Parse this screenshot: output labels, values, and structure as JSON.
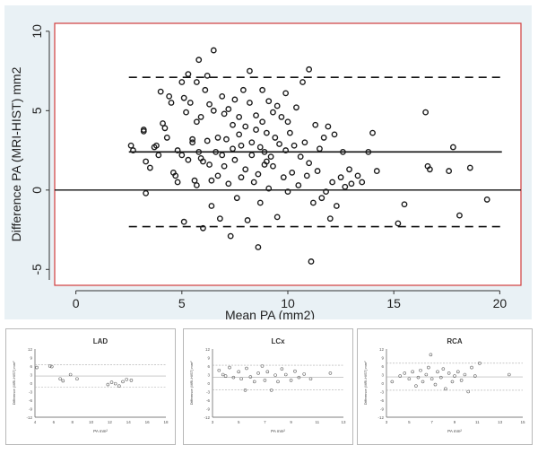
{
  "chart_data": [
    {
      "type": "scatter",
      "xlabel": "Mean PA (mm2)",
      "ylabel": "Difference PA (MRI-HIST) mm2",
      "xlim": [
        -1,
        21
      ],
      "ylim": [
        -6,
        10.5
      ],
      "xticks": [
        0,
        5,
        10,
        15,
        20
      ],
      "yticks": [
        -5,
        0,
        5,
        10
      ],
      "mean_line": 2.4,
      "upper_limit": 7.1,
      "lower_limit": -2.3,
      "zero_line": 0,
      "grid": false,
      "colors": {
        "frame": "#e9f1f5",
        "plot_border": "#d03c3c",
        "marker": "#1a1a1a"
      },
      "points": [
        [
          2.6,
          2.8
        ],
        [
          2.7,
          2.5
        ],
        [
          3.2,
          3.8
        ],
        [
          3.2,
          3.7
        ],
        [
          3.3,
          1.8
        ],
        [
          3.3,
          -0.2
        ],
        [
          3.5,
          1.4
        ],
        [
          3.7,
          2.7
        ],
        [
          3.8,
          2.8
        ],
        [
          3.9,
          2.2
        ],
        [
          4.0,
          6.2
        ],
        [
          4.1,
          4.2
        ],
        [
          4.2,
          3.9
        ],
        [
          4.3,
          3.3
        ],
        [
          4.4,
          5.9
        ],
        [
          4.5,
          5.5
        ],
        [
          4.6,
          1.1
        ],
        [
          4.7,
          0.9
        ],
        [
          4.8,
          2.5
        ],
        [
          4.8,
          0.5
        ],
        [
          5.0,
          6.8
        ],
        [
          5.0,
          2.2
        ],
        [
          5.1,
          5.8
        ],
        [
          5.1,
          -2.0
        ],
        [
          5.2,
          4.9
        ],
        [
          5.3,
          7.3
        ],
        [
          5.3,
          1.9
        ],
        [
          5.4,
          5.5
        ],
        [
          5.5,
          3.2
        ],
        [
          5.5,
          3.0
        ],
        [
          5.6,
          0.6
        ],
        [
          5.7,
          6.8
        ],
        [
          5.7,
          4.3
        ],
        [
          5.7,
          0.3
        ],
        [
          5.8,
          8.2
        ],
        [
          5.8,
          2.4
        ],
        [
          5.9,
          4.6
        ],
        [
          5.9,
          2.0
        ],
        [
          6.0,
          1.8
        ],
        [
          6.0,
          -2.4
        ],
        [
          6.1,
          6.3
        ],
        [
          6.2,
          7.2
        ],
        [
          6.2,
          3.1
        ],
        [
          6.3,
          5.4
        ],
        [
          6.3,
          1.6
        ],
        [
          6.4,
          0.6
        ],
        [
          6.4,
          -1.0
        ],
        [
          6.5,
          8.8
        ],
        [
          6.5,
          5.0
        ],
        [
          6.6,
          2.4
        ],
        [
          6.7,
          3.3
        ],
        [
          6.7,
          0.9
        ],
        [
          6.8,
          -1.8
        ],
        [
          6.9,
          5.9
        ],
        [
          6.9,
          2.2
        ],
        [
          7.0,
          4.8
        ],
        [
          7.0,
          1.5
        ],
        [
          7.1,
          3.2
        ],
        [
          7.2,
          5.1
        ],
        [
          7.2,
          0.4
        ],
        [
          7.3,
          -2.9
        ],
        [
          7.4,
          4.1
        ],
        [
          7.4,
          2.6
        ],
        [
          7.5,
          5.7
        ],
        [
          7.5,
          1.9
        ],
        [
          7.6,
          -0.5
        ],
        [
          7.7,
          4.6
        ],
        [
          7.7,
          3.5
        ],
        [
          7.8,
          2.8
        ],
        [
          7.8,
          0.8
        ],
        [
          7.9,
          6.3
        ],
        [
          8.0,
          4.0
        ],
        [
          8.0,
          1.3
        ],
        [
          8.1,
          -1.9
        ],
        [
          8.2,
          7.5
        ],
        [
          8.2,
          5.5
        ],
        [
          8.3,
          3.0
        ],
        [
          8.3,
          2.2
        ],
        [
          8.4,
          0.5
        ],
        [
          8.5,
          4.7
        ],
        [
          8.5,
          3.8
        ],
        [
          8.6,
          1.0
        ],
        [
          8.7,
          2.7
        ],
        [
          8.7,
          -0.8
        ],
        [
          8.8,
          6.3
        ],
        [
          8.8,
          4.3
        ],
        [
          8.9,
          2.4
        ],
        [
          9.0,
          3.6
        ],
        [
          9.0,
          1.8
        ],
        [
          9.1,
          5.6
        ],
        [
          9.1,
          0.1
        ],
        [
          9.2,
          2.1
        ],
        [
          9.3,
          4.9
        ],
        [
          9.3,
          1.5
        ],
        [
          9.4,
          3.3
        ],
        [
          9.5,
          5.3
        ],
        [
          9.5,
          -1.7
        ],
        [
          9.6,
          2.9
        ],
        [
          9.7,
          4.6
        ],
        [
          9.8,
          0.8
        ],
        [
          9.9,
          6.1
        ],
        [
          9.9,
          2.5
        ],
        [
          10.0,
          4.3
        ],
        [
          10.0,
          -0.1
        ],
        [
          10.1,
          3.6
        ],
        [
          10.2,
          1.1
        ],
        [
          10.3,
          2.8
        ],
        [
          10.4,
          5.2
        ],
        [
          10.5,
          0.3
        ],
        [
          10.6,
          2.1
        ],
        [
          10.7,
          6.8
        ],
        [
          10.8,
          3.0
        ],
        [
          10.9,
          0.9
        ],
        [
          11.0,
          7.6
        ],
        [
          11.0,
          1.7
        ],
        [
          11.1,
          -4.5
        ],
        [
          11.2,
          -0.8
        ],
        [
          11.3,
          4.1
        ],
        [
          11.4,
          1.2
        ],
        [
          11.5,
          2.6
        ],
        [
          11.6,
          -0.5
        ],
        [
          11.7,
          3.3
        ],
        [
          11.8,
          -0.1
        ],
        [
          11.9,
          4.0
        ],
        [
          12.0,
          -1.8
        ],
        [
          12.1,
          0.5
        ],
        [
          12.2,
          3.5
        ],
        [
          12.3,
          -1.0
        ],
        [
          12.5,
          0.8
        ],
        [
          12.6,
          2.4
        ],
        [
          12.7,
          0.2
        ],
        [
          12.9,
          1.3
        ],
        [
          13.0,
          0.4
        ],
        [
          13.3,
          0.9
        ],
        [
          13.5,
          0.5
        ],
        [
          13.8,
          2.4
        ],
        [
          14.0,
          3.6
        ],
        [
          14.2,
          1.2
        ],
        [
          15.2,
          -2.1
        ],
        [
          15.5,
          -0.9
        ],
        [
          16.5,
          4.9
        ],
        [
          16.6,
          1.5
        ],
        [
          16.7,
          1.3
        ],
        [
          17.6,
          1.2
        ],
        [
          17.8,
          2.7
        ],
        [
          18.1,
          -1.6
        ],
        [
          18.6,
          1.4
        ],
        [
          19.4,
          -0.6
        ],
        [
          8.6,
          -3.6
        ],
        [
          8.9,
          1.6
        ]
      ]
    },
    {
      "type": "scatter",
      "title": "LAD",
      "xlabel": "PA mm²",
      "ylabel": "Difference (MRI-HIST) mm²",
      "xlim": [
        4,
        18
      ],
      "ylim": [
        -12,
        12
      ],
      "xticks": [
        4,
        6,
        8,
        10,
        12,
        14,
        16,
        18
      ],
      "yticks": [
        -12,
        -9,
        -6,
        -3,
        0,
        3,
        6,
        9,
        12
      ],
      "mean_line": 2.5,
      "upper_limit": 6.5,
      "lower_limit": -1.5,
      "points": [
        [
          4.2,
          5.5
        ],
        [
          5.6,
          6.0
        ],
        [
          5.8,
          5.8
        ],
        [
          6.7,
          1.5
        ],
        [
          7.0,
          0.8
        ],
        [
          7.8,
          3.0
        ],
        [
          8.5,
          1.5
        ],
        [
          11.8,
          -0.5
        ],
        [
          12.2,
          0.3
        ],
        [
          12.6,
          -0.2
        ],
        [
          13.0,
          -1.0
        ],
        [
          13.4,
          0.5
        ],
        [
          13.8,
          1.3
        ],
        [
          14.3,
          1.0
        ]
      ]
    },
    {
      "type": "scatter",
      "title": "LCx",
      "xlabel": "PA mm²",
      "ylabel": "Difference (MRI-HIST) mm²",
      "xlim": [
        3,
        13
      ],
      "ylim": [
        -12,
        12
      ],
      "xticks": [
        3,
        5,
        7,
        9,
        11,
        13
      ],
      "yticks": [
        -12,
        -9,
        -6,
        -3,
        0,
        3,
        6,
        9,
        12
      ],
      "mean_line": 2.0,
      "upper_limit": 6.3,
      "lower_limit": -2.3,
      "points": [
        [
          3.5,
          4.5
        ],
        [
          3.8,
          3.0
        ],
        [
          4.0,
          2.5
        ],
        [
          4.3,
          5.5
        ],
        [
          4.6,
          2.0
        ],
        [
          5.0,
          4.0
        ],
        [
          5.2,
          1.5
        ],
        [
          5.5,
          -2.5
        ],
        [
          5.6,
          5.2
        ],
        [
          5.9,
          2.2
        ],
        [
          6.2,
          0.5
        ],
        [
          6.5,
          3.5
        ],
        [
          6.8,
          6.0
        ],
        [
          7.0,
          1.0
        ],
        [
          7.2,
          4.0
        ],
        [
          7.5,
          -2.5
        ],
        [
          7.8,
          2.8
        ],
        [
          8.0,
          0.5
        ],
        [
          8.3,
          5.0
        ],
        [
          8.6,
          3.0
        ],
        [
          9.0,
          1.0
        ],
        [
          9.3,
          4.2
        ],
        [
          9.6,
          2.0
        ],
        [
          10.0,
          3.2
        ],
        [
          10.5,
          1.5
        ],
        [
          12.0,
          3.5
        ]
      ]
    },
    {
      "type": "scatter",
      "title": "RCA",
      "xlabel": "PA mm²",
      "ylabel": "Difference (MRI-HIST) mm²",
      "xlim": [
        3,
        15
      ],
      "ylim": [
        -12,
        12
      ],
      "xticks": [
        3,
        5,
        7,
        9,
        11,
        13,
        15
      ],
      "yticks": [
        -12,
        -9,
        -6,
        -3,
        0,
        3,
        6,
        9,
        12
      ],
      "mean_line": 2.2,
      "upper_limit": 7.0,
      "lower_limit": -2.5,
      "points": [
        [
          3.5,
          0.5
        ],
        [
          4.2,
          2.5
        ],
        [
          4.6,
          3.5
        ],
        [
          5.0,
          1.5
        ],
        [
          5.3,
          4.0
        ],
        [
          5.6,
          -1.0
        ],
        [
          5.8,
          2.0
        ],
        [
          6.0,
          4.5
        ],
        [
          6.2,
          0.5
        ],
        [
          6.5,
          3.0
        ],
        [
          6.7,
          5.5
        ],
        [
          6.9,
          10.0
        ],
        [
          7.0,
          1.5
        ],
        [
          7.3,
          -0.5
        ],
        [
          7.5,
          4.0
        ],
        [
          7.8,
          2.0
        ],
        [
          8.0,
          5.0
        ],
        [
          8.2,
          -2.0
        ],
        [
          8.5,
          3.5
        ],
        [
          8.8,
          0.5
        ],
        [
          9.0,
          2.5
        ],
        [
          9.3,
          4.0
        ],
        [
          9.6,
          1.0
        ],
        [
          9.9,
          3.0
        ],
        [
          10.2,
          -3.0
        ],
        [
          10.5,
          5.5
        ],
        [
          10.8,
          2.5
        ],
        [
          11.2,
          7.0
        ],
        [
          13.8,
          3.0
        ]
      ]
    }
  ]
}
